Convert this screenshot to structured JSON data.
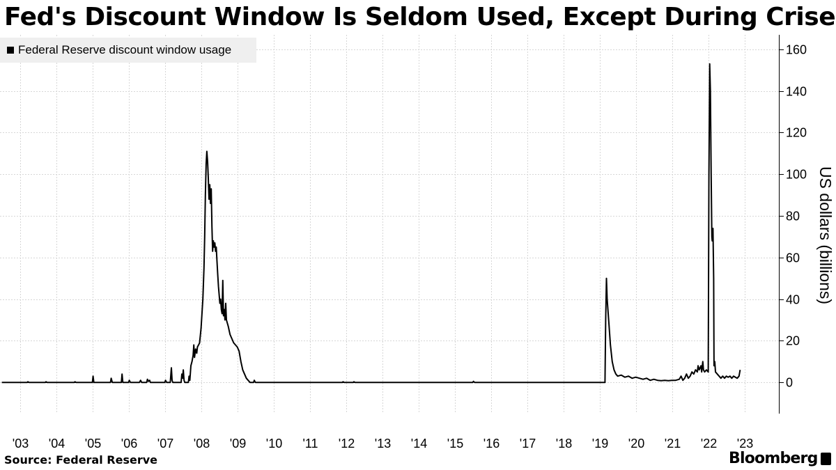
{
  "title": "Fed's Discount Window Is Seldom Used, Except During Crises",
  "source": "Source: Federal Reserve",
  "brand": "Bloomberg",
  "chart_data": {
    "type": "line",
    "ylabel": "US dollars (billions)",
    "ylim": [
      -15,
      167
    ],
    "yticks": [
      0,
      20,
      40,
      60,
      80,
      100,
      120,
      140,
      160
    ],
    "xlim": [
      2002.45,
      2023.95
    ],
    "xticks": [
      {
        "x": 2003,
        "label": "'03"
      },
      {
        "x": 2004,
        "label": "'04"
      },
      {
        "x": 2005,
        "label": "'05"
      },
      {
        "x": 2006,
        "label": "'06"
      },
      {
        "x": 2007,
        "label": "'07"
      },
      {
        "x": 2008,
        "label": "'08"
      },
      {
        "x": 2009,
        "label": "'09"
      },
      {
        "x": 2010,
        "label": "'10"
      },
      {
        "x": 2011,
        "label": "'11"
      },
      {
        "x": 2012,
        "label": "'12"
      },
      {
        "x": 2013,
        "label": "'13"
      },
      {
        "x": 2014,
        "label": "'14"
      },
      {
        "x": 2015,
        "label": "'15"
      },
      {
        "x": 2016,
        "label": "'16"
      },
      {
        "x": 2017,
        "label": "'17"
      },
      {
        "x": 2018,
        "label": "'18"
      },
      {
        "x": 2019,
        "label": "'19"
      },
      {
        "x": 2020,
        "label": "'20"
      },
      {
        "x": 2021,
        "label": "'21"
      },
      {
        "x": 2022,
        "label": "'22"
      },
      {
        "x": 2023,
        "label": "'23"
      }
    ],
    "grid": true,
    "legend_position": "top-left",
    "series": [
      {
        "name": "Federal Reserve discount window usage",
        "color": "#000000",
        "points": [
          [
            2002.5,
            0
          ],
          [
            2003.2,
            0
          ],
          [
            2003.22,
            0.3
          ],
          [
            2003.25,
            0
          ],
          [
            2003.7,
            0
          ],
          [
            2003.72,
            0.3
          ],
          [
            2003.75,
            0
          ],
          [
            2004.5,
            0
          ],
          [
            2004.52,
            0.3
          ],
          [
            2004.55,
            0
          ],
          [
            2005.0,
            0
          ],
          [
            2005.02,
            3
          ],
          [
            2005.04,
            0
          ],
          [
            2005.5,
            0
          ],
          [
            2005.52,
            2
          ],
          [
            2005.55,
            0
          ],
          [
            2005.8,
            0
          ],
          [
            2005.82,
            4
          ],
          [
            2005.84,
            0
          ],
          [
            2006.0,
            0
          ],
          [
            2006.02,
            1
          ],
          [
            2006.05,
            0
          ],
          [
            2006.3,
            0
          ],
          [
            2006.33,
            1
          ],
          [
            2006.36,
            0
          ],
          [
            2006.5,
            0
          ],
          [
            2006.52,
            1.5
          ],
          [
            2006.55,
            0.5
          ],
          [
            2006.58,
            1
          ],
          [
            2006.6,
            0
          ],
          [
            2007.0,
            0
          ],
          [
            2007.02,
            1
          ],
          [
            2007.05,
            0
          ],
          [
            2007.15,
            0
          ],
          [
            2007.18,
            7
          ],
          [
            2007.2,
            1
          ],
          [
            2007.22,
            0
          ],
          [
            2007.45,
            0
          ],
          [
            2007.47,
            4
          ],
          [
            2007.49,
            2
          ],
          [
            2007.51,
            6
          ],
          [
            2007.53,
            1
          ],
          [
            2007.55,
            0
          ],
          [
            2007.65,
            0
          ],
          [
            2007.67,
            3
          ],
          [
            2007.69,
            1
          ],
          [
            2007.72,
            8
          ],
          [
            2007.75,
            10
          ],
          [
            2007.78,
            13
          ],
          [
            2007.8,
            18
          ],
          [
            2007.82,
            12
          ],
          [
            2007.85,
            16
          ],
          [
            2007.88,
            14
          ],
          [
            2007.9,
            17
          ],
          [
            2007.93,
            18
          ],
          [
            2007.96,
            19
          ],
          [
            2008.0,
            26
          ],
          [
            2008.05,
            40
          ],
          [
            2008.08,
            55
          ],
          [
            2008.1,
            70
          ],
          [
            2008.12,
            90
          ],
          [
            2008.14,
            105
          ],
          [
            2008.16,
            111
          ],
          [
            2008.18,
            106
          ],
          [
            2008.2,
            98
          ],
          [
            2008.22,
            88
          ],
          [
            2008.24,
            95
          ],
          [
            2008.26,
            86
          ],
          [
            2008.28,
            93
          ],
          [
            2008.3,
            75
          ],
          [
            2008.32,
            63
          ],
          [
            2008.34,
            68
          ],
          [
            2008.36,
            65
          ],
          [
            2008.38,
            67
          ],
          [
            2008.4,
            63
          ],
          [
            2008.42,
            65
          ],
          [
            2008.44,
            58
          ],
          [
            2008.46,
            52
          ],
          [
            2008.48,
            46
          ],
          [
            2008.5,
            42
          ],
          [
            2008.52,
            38
          ],
          [
            2008.54,
            40
          ],
          [
            2008.56,
            35
          ],
          [
            2008.58,
            33
          ],
          [
            2008.6,
            49
          ],
          [
            2008.62,
            32
          ],
          [
            2008.64,
            35
          ],
          [
            2008.66,
            30
          ],
          [
            2008.68,
            38
          ],
          [
            2008.7,
            30
          ],
          [
            2008.75,
            27
          ],
          [
            2008.8,
            23
          ],
          [
            2008.85,
            21
          ],
          [
            2008.9,
            19
          ],
          [
            2008.95,
            18
          ],
          [
            2009.0,
            17
          ],
          [
            2009.05,
            15
          ],
          [
            2009.1,
            10
          ],
          [
            2009.15,
            6
          ],
          [
            2009.2,
            4
          ],
          [
            2009.25,
            2
          ],
          [
            2009.3,
            1
          ],
          [
            2009.35,
            0
          ],
          [
            2009.45,
            0
          ],
          [
            2009.47,
            1
          ],
          [
            2009.5,
            0
          ],
          [
            2011.9,
            0
          ],
          [
            2011.92,
            0.3
          ],
          [
            2011.95,
            0
          ],
          [
            2012.2,
            0
          ],
          [
            2012.22,
            0.3
          ],
          [
            2012.25,
            0
          ],
          [
            2015.5,
            0
          ],
          [
            2015.52,
            0.5
          ],
          [
            2015.55,
            0
          ],
          [
            2019.15,
            0
          ],
          [
            2019.17,
            30
          ],
          [
            2019.19,
            50
          ],
          [
            2019.21,
            40
          ],
          [
            2019.23,
            35
          ],
          [
            2019.26,
            28
          ],
          [
            2019.3,
            18
          ],
          [
            2019.35,
            10
          ],
          [
            2019.4,
            6
          ],
          [
            2019.45,
            4
          ],
          [
            2019.5,
            3
          ],
          [
            2019.6,
            3.5
          ],
          [
            2019.7,
            2.5
          ],
          [
            2019.8,
            3
          ],
          [
            2019.9,
            2
          ],
          [
            2020.0,
            2.5
          ],
          [
            2020.1,
            2
          ],
          [
            2020.2,
            1.5
          ],
          [
            2020.3,
            2
          ],
          [
            2020.4,
            1
          ],
          [
            2020.5,
            1.5
          ],
          [
            2020.6,
            1
          ],
          [
            2020.7,
            0.8
          ],
          [
            2020.8,
            1
          ],
          [
            2020.9,
            0.8
          ],
          [
            2021.0,
            1
          ],
          [
            2021.1,
            1
          ],
          [
            2021.2,
            1.5
          ],
          [
            2021.25,
            3
          ],
          [
            2021.3,
            1
          ],
          [
            2021.35,
            2
          ],
          [
            2021.4,
            4
          ],
          [
            2021.45,
            2
          ],
          [
            2021.5,
            3
          ],
          [
            2021.55,
            5
          ],
          [
            2021.6,
            4
          ],
          [
            2021.65,
            6
          ],
          [
            2021.7,
            5
          ],
          [
            2021.72,
            8
          ],
          [
            2021.75,
            6
          ],
          [
            2021.8,
            8
          ],
          [
            2021.82,
            5
          ],
          [
            2021.85,
            10
          ],
          [
            2021.87,
            6
          ],
          [
            2021.9,
            5
          ],
          [
            2021.95,
            6
          ],
          [
            2022.0,
            5
          ],
          [
            2022.02,
            100
          ],
          [
            2022.04,
            153
          ],
          [
            2022.06,
            140
          ],
          [
            2022.08,
            100
          ],
          [
            2022.1,
            70
          ],
          [
            2022.11,
            68
          ],
          [
            2022.13,
            74
          ],
          [
            2022.15,
            50
          ],
          [
            2022.16,
            8
          ],
          [
            2022.18,
            10
          ],
          [
            2022.2,
            5
          ],
          [
            2022.25,
            4
          ],
          [
            2022.3,
            3
          ],
          [
            2022.35,
            2
          ],
          [
            2022.4,
            3
          ],
          [
            2022.45,
            2
          ],
          [
            2022.5,
            3
          ],
          [
            2022.55,
            2.5
          ],
          [
            2022.6,
            3
          ],
          [
            2022.65,
            2
          ],
          [
            2022.7,
            3
          ],
          [
            2022.75,
            2.5
          ],
          [
            2022.8,
            2
          ],
          [
            2022.85,
            3
          ],
          [
            2022.88,
            6
          ]
        ]
      }
    ]
  }
}
